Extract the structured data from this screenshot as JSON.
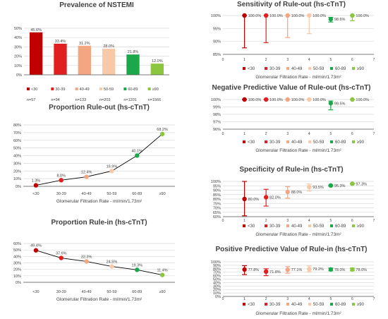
{
  "colors": [
    "#c00000",
    "#e02020",
    "#f4a582",
    "#f7c9a8",
    "#1aa84a",
    "#8cc63f"
  ],
  "gfr_categories": [
    "<30",
    "30-39",
    "40-49",
    "50-59",
    "60-89",
    "≥90"
  ],
  "charts": {
    "prevalence": {
      "title": "Prevalence of NSTEMI",
      "n_labels": [
        "n=57",
        "n=94",
        "n=133",
        "n=203",
        "n=1201",
        "n=1566"
      ]
    },
    "rule_out": {
      "title": "Proportion Rule-out (hs-cTnT)",
      "xlabel": "Glomerular Filtration Rate - ml/min/1.73m²"
    },
    "rule_in": {
      "title": "Proportion Rule-in (hs-cTnT)",
      "xlabel": "Glomerular Filtration Rate - ml/min/1.73m²"
    },
    "sens": {
      "title": "Sensitivity of Rule-out (hs-cTnT)",
      "xlabel": "Glomerular Filtration Rate - ml/min/1.73m²"
    },
    "npv": {
      "title": "Negative Predictive Value of Rule-out (hs-cTnT)",
      "xlabel": "Glomerular Filtration Rate - ml/min/1.73m²"
    },
    "spec": {
      "title": "Specificity of Rule-in (hs-cTnT)",
      "xlabel": "Glomerular Filtration Rate - ml/min/1.73m²"
    },
    "ppv": {
      "title": "Positive Predictive Value of Rule-in (hs-cTnT)",
      "xlabel": "Glomerular Filtration Rate - ml/min/1.73m²"
    }
  },
  "chart_data": [
    {
      "id": "prevalence",
      "type": "bar",
      "categories": [
        "<30",
        "30-39",
        "40-49",
        "50-59",
        "60-89",
        "≥90"
      ],
      "values": [
        45.6,
        33.4,
        31.2,
        28.0,
        21.8,
        12.0
      ],
      "labels": [
        "45.6%",
        "33.4%",
        "31.2%",
        "28.0%",
        "21.8%",
        "12.0%"
      ],
      "ylim": [
        0,
        50
      ],
      "yticks": [
        "0%",
        "10%",
        "20%",
        "30%",
        "40%",
        "50%"
      ]
    },
    {
      "id": "rule_out",
      "type": "line",
      "categories": [
        "<30",
        "30-39",
        "40-49",
        "50-59",
        "60-89",
        "≥90"
      ],
      "values": [
        1.3,
        8.0,
        12.4,
        19.9,
        40.1,
        68.2
      ],
      "labels": [
        "1.3%",
        "8.0%",
        "12.4%",
        "19.9%",
        "40.1%",
        "68.2%"
      ],
      "ylim": [
        0,
        80
      ],
      "yticks": [
        "0%",
        "10%",
        "20%",
        "30%",
        "40%",
        "50%",
        "60%",
        "70%",
        "80%"
      ]
    },
    {
      "id": "rule_in",
      "type": "line",
      "categories": [
        "<30",
        "30-39",
        "40-49",
        "50-59",
        "60-89",
        "≥90"
      ],
      "values": [
        49.4,
        37.6,
        32.3,
        24.5,
        19.3,
        11.4
      ],
      "labels": [
        "49.4%",
        "37.6%",
        "32.3%",
        "24.5%",
        "19.3%",
        "11.4%"
      ],
      "ylim": [
        0,
        60
      ],
      "yticks": [
        "0%",
        "10%",
        "20%",
        "30%",
        "40%",
        "50%",
        "60%"
      ]
    },
    {
      "id": "sens",
      "type": "scatter",
      "x": [
        1,
        2,
        3,
        4,
        5,
        6
      ],
      "xticks": [
        "0",
        "1",
        "2",
        "3",
        "4",
        "5",
        "6",
        "7"
      ],
      "xlim": [
        0,
        7
      ],
      "values": [
        100.0,
        100.0,
        100.0,
        100.0,
        98.6,
        100.0
      ],
      "lower": [
        87.5,
        89.5,
        91.5,
        93.0,
        97.5,
        98.0
      ],
      "upper": [
        100,
        100,
        100,
        100,
        99.3,
        100
      ],
      "labels": [
        "100.0%",
        "100.0%",
        "100.0%",
        "100.0%",
        "98.6%",
        "100.0%"
      ],
      "ylim": [
        85,
        100
      ],
      "yticks": [
        "85%",
        "90%",
        "95%",
        "100%"
      ],
      "legend": [
        "<30",
        "30-39",
        "40-49",
        "50-59",
        "60-89",
        "≥90"
      ]
    },
    {
      "id": "npv",
      "type": "scatter",
      "x": [
        1,
        2,
        3,
        4,
        5,
        6
      ],
      "xticks": [
        "0",
        "1",
        "2",
        "3",
        "4",
        "5",
        "6",
        "7"
      ],
      "xlim": [
        0,
        7
      ],
      "values": [
        100.0,
        100.0,
        100.0,
        100.0,
        99.5,
        100.0
      ],
      "lower": [
        100,
        100,
        100,
        100,
        98.6,
        100
      ],
      "upper": [
        100,
        100,
        100,
        100,
        99.8,
        100
      ],
      "labels": [
        "100.0%",
        "100.0%",
        "100.0%",
        "100.0%",
        "99.5%",
        "100.0%"
      ],
      "ylim": [
        96,
        100
      ],
      "yticks": [
        "96%",
        "97%",
        "98%",
        "99%",
        "100%"
      ],
      "legend": [
        "<30",
        "30-39",
        "40-49",
        "50-59",
        "60-89",
        "≥90"
      ]
    },
    {
      "id": "spec",
      "type": "scatter",
      "x": [
        1,
        2,
        3,
        4,
        5,
        6
      ],
      "xticks": [
        "0",
        "1",
        "2",
        "3",
        "4",
        "5",
        "6",
        "7"
      ],
      "xlim": [
        0,
        7
      ],
      "values": [
        80.0,
        82.0,
        88.0,
        93.5,
        95.3,
        97.3
      ],
      "lower": [
        61,
        72,
        81,
        89,
        94.5,
        96.8
      ],
      "upper": [
        100,
        91,
        94,
        97,
        96,
        97.8
      ],
      "labels": [
        "80.0%",
        "82.0%",
        "88.0%",
        "93.5%",
        "95.3%",
        "97.3%"
      ],
      "ylim": [
        60,
        100
      ],
      "yticks": [
        "60%",
        "65%",
        "70%",
        "75%",
        "80%",
        "85%",
        "90%",
        "95%",
        "100%"
      ],
      "legend": [
        "<30",
        "30-39",
        "40-49",
        "50-59",
        "60-89",
        "≥90"
      ]
    },
    {
      "id": "ppv",
      "type": "scatter",
      "x": [
        1,
        2,
        3,
        4,
        5,
        6
      ],
      "xticks": [
        "0",
        "1",
        "2",
        "3",
        "4",
        "5",
        "6",
        "7"
      ],
      "xlim": [
        0,
        7
      ],
      "values": [
        77.8,
        71.8,
        77.1,
        79.2,
        78.0,
        78.0
      ],
      "lower": [
        63,
        60,
        67,
        71,
        74,
        74
      ],
      "upper": [
        89,
        80,
        86,
        88,
        82,
        82
      ],
      "labels": [
        "77.8%",
        "71.8%",
        "77.1%",
        "79.2%",
        "78.0%",
        "78.0%"
      ],
      "ylim": [
        0,
        100
      ],
      "yticks": [
        "0%",
        "10%",
        "20%",
        "30%",
        "40%",
        "50%",
        "60%",
        "70%",
        "80%",
        "90%",
        "100%"
      ],
      "legend": [
        "<30",
        "30-39",
        "40-49",
        "50-59",
        "60-89",
        "≥90"
      ]
    }
  ]
}
